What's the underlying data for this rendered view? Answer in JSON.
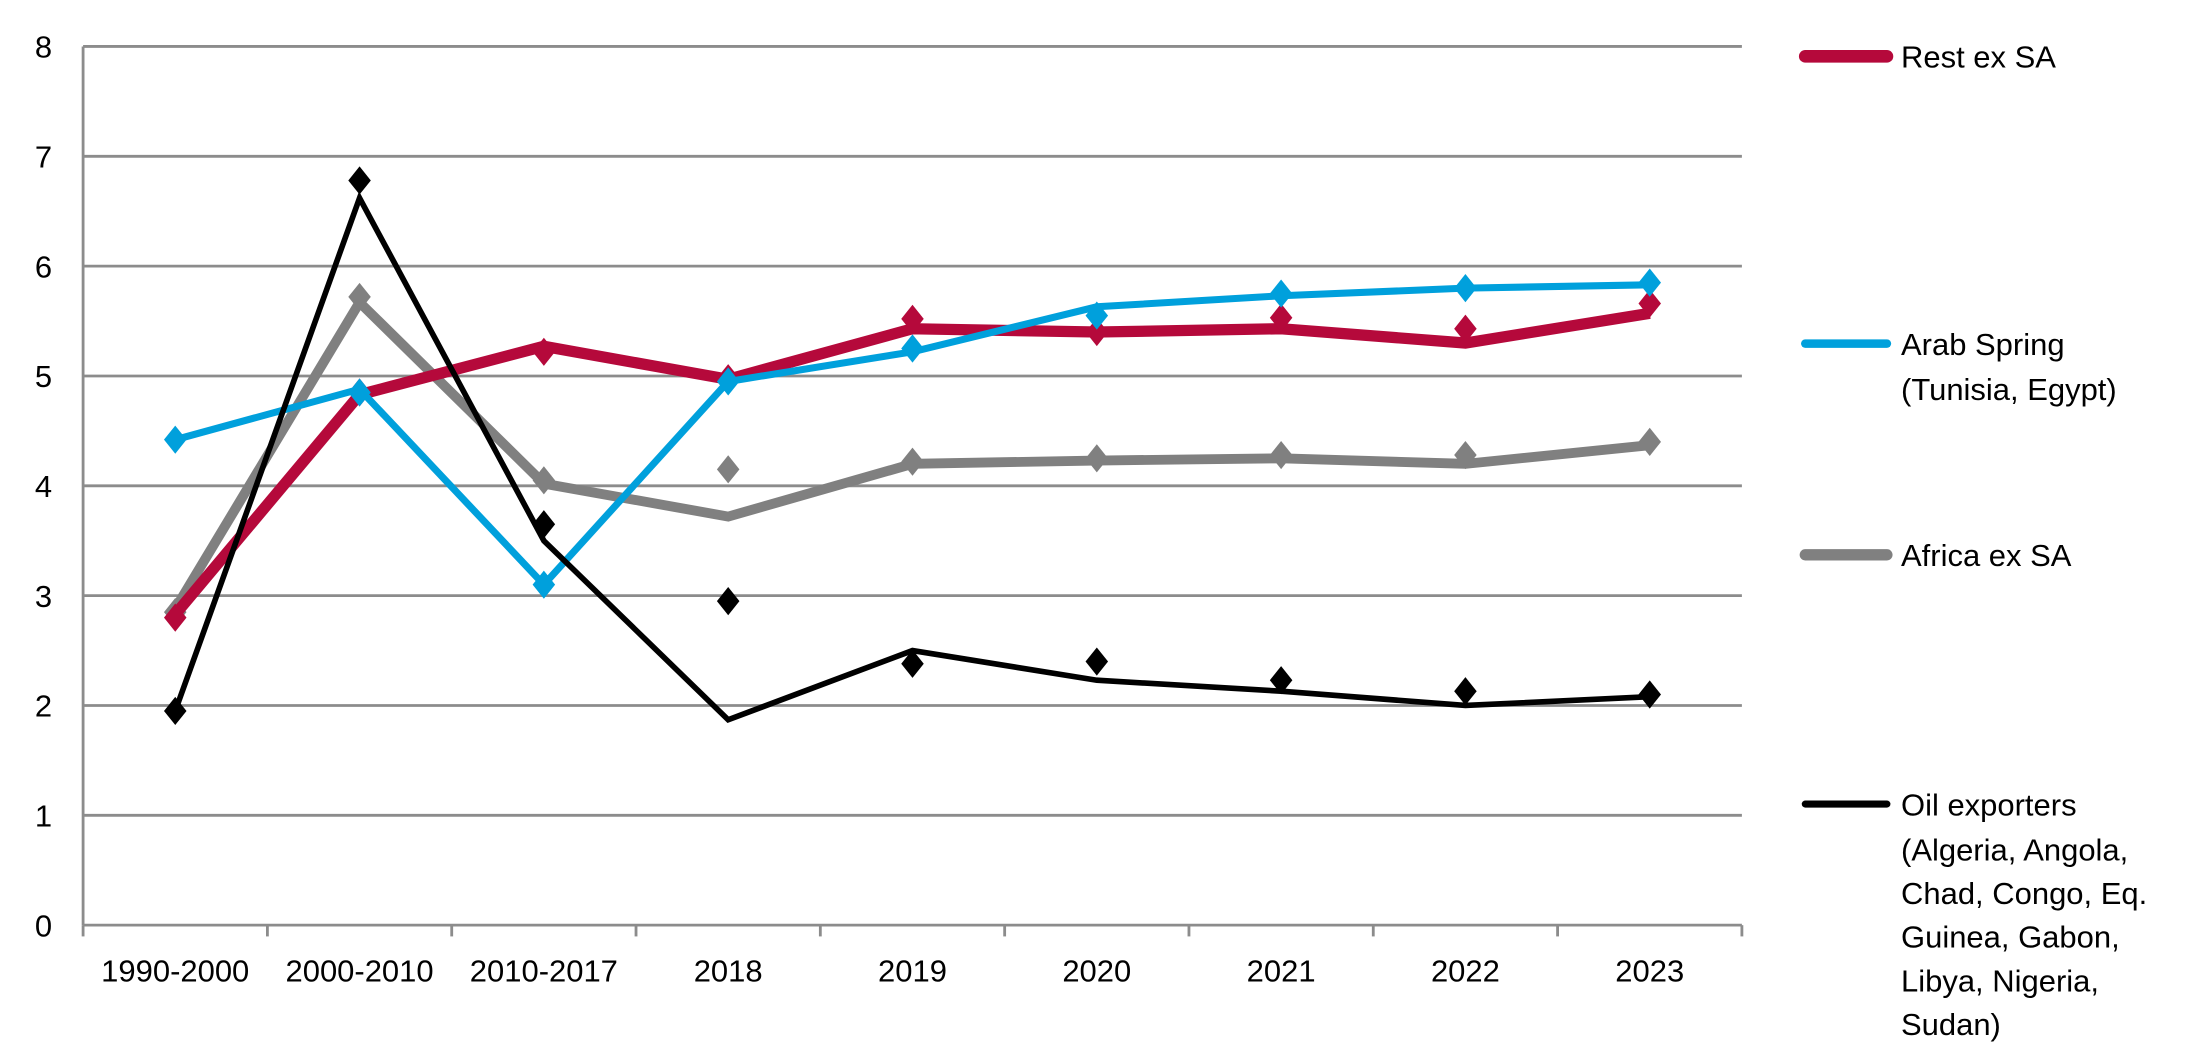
{
  "chart_data": {
    "type": "line",
    "categories": [
      "1990-2000",
      "2000-2010",
      "2010-2017",
      "2018",
      "2019",
      "2020",
      "2021",
      "2022",
      "2023"
    ],
    "ylim": [
      0,
      8
    ],
    "yticks": [
      "0",
      "1",
      "2",
      "3",
      "4",
      "5",
      "6",
      "7",
      "8"
    ],
    "grid": true,
    "legend_position": "right",
    "series": [
      {
        "name": "Rest ex SA",
        "color": "#b5093b",
        "line": [
          2.83,
          4.83,
          5.27,
          4.97,
          5.43,
          5.4,
          5.43,
          5.3,
          5.57
        ],
        "markers": [
          2.8,
          4.85,
          5.22,
          4.98,
          5.52,
          5.4,
          5.53,
          5.43,
          5.66
        ]
      },
      {
        "name": "Arab Spring",
        "name_line2": "(Tunisia, Egypt)",
        "color": "#00a0dc",
        "line": [
          4.42,
          4.88,
          3.1,
          4.95,
          5.22,
          5.63,
          5.73,
          5.8,
          5.83
        ],
        "markers": [
          4.42,
          4.85,
          3.1,
          4.95,
          5.25,
          5.55,
          5.75,
          5.8,
          5.85
        ]
      },
      {
        "name": "Africa ex SA",
        "color": "#808080",
        "line": [
          2.88,
          5.67,
          4.02,
          3.72,
          4.2,
          4.23,
          4.25,
          4.2,
          4.37
        ],
        "markers": [
          2.85,
          5.72,
          4.05,
          4.15,
          4.22,
          4.25,
          4.28,
          4.28,
          4.4
        ]
      },
      {
        "name": "Oil exporters",
        "name_lines": [
          "(Algeria, Angola,",
          "Chad, Congo, Eq.",
          "Guinea, Gabon,",
          "Libya, Nigeria,",
          "Sudan)"
        ],
        "color": "#000000",
        "line": [
          1.95,
          6.62,
          3.5,
          1.87,
          2.5,
          2.23,
          2.13,
          2.0,
          2.08
        ],
        "markers": [
          1.95,
          6.78,
          3.65,
          2.95,
          2.38,
          2.4,
          2.23,
          2.13,
          2.1
        ]
      }
    ]
  }
}
